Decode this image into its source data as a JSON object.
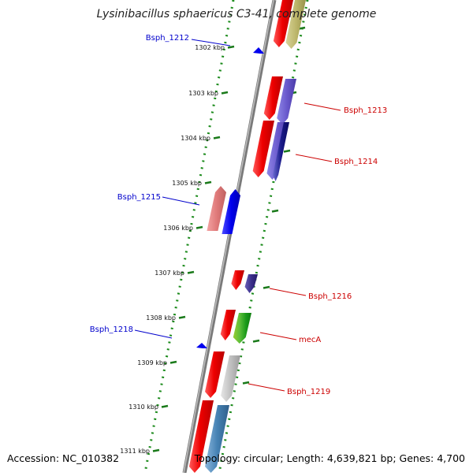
{
  "title": "Lysinibacillus sphaericus C3-41, complete genome",
  "footer": {
    "accession": "Accession: NC_010382",
    "summary": "Topology: circular; Length: 4,639,821 bp; Genes: 4,700"
  },
  "colors": {
    "forward_gene_label": "#cc0000",
    "reverse_gene_label": "#0000cc",
    "backbone": "#808080",
    "tick": "#1a7a1a",
    "cds_red": "#ee0000",
    "cds_blue": "#0000ee"
  },
  "ticks": [
    {
      "label": "1302 kbp"
    },
    {
      "label": "1303 kbp"
    },
    {
      "label": "1304 kbp"
    },
    {
      "label": "1305 kbp"
    },
    {
      "label": "1306 kbp"
    },
    {
      "label": "1307 kbp"
    },
    {
      "label": "1308 kbp"
    },
    {
      "label": "1309 kbp"
    },
    {
      "label": "1310 kbp"
    },
    {
      "label": "1311 kbp"
    }
  ],
  "genes": [
    {
      "label": "Bsph_1212",
      "strand": "reverse"
    },
    {
      "label": "Bsph_1213",
      "strand": "forward"
    },
    {
      "label": "Bsph_1214",
      "strand": "forward"
    },
    {
      "label": "Bsph_1215",
      "strand": "reverse"
    },
    {
      "label": "Bsph_1216",
      "strand": "forward"
    },
    {
      "label": "Bsph_1218",
      "strand": "reverse"
    },
    {
      "label": "mecA",
      "strand": "forward"
    },
    {
      "label": "Bsph_1219",
      "strand": "forward"
    }
  ]
}
